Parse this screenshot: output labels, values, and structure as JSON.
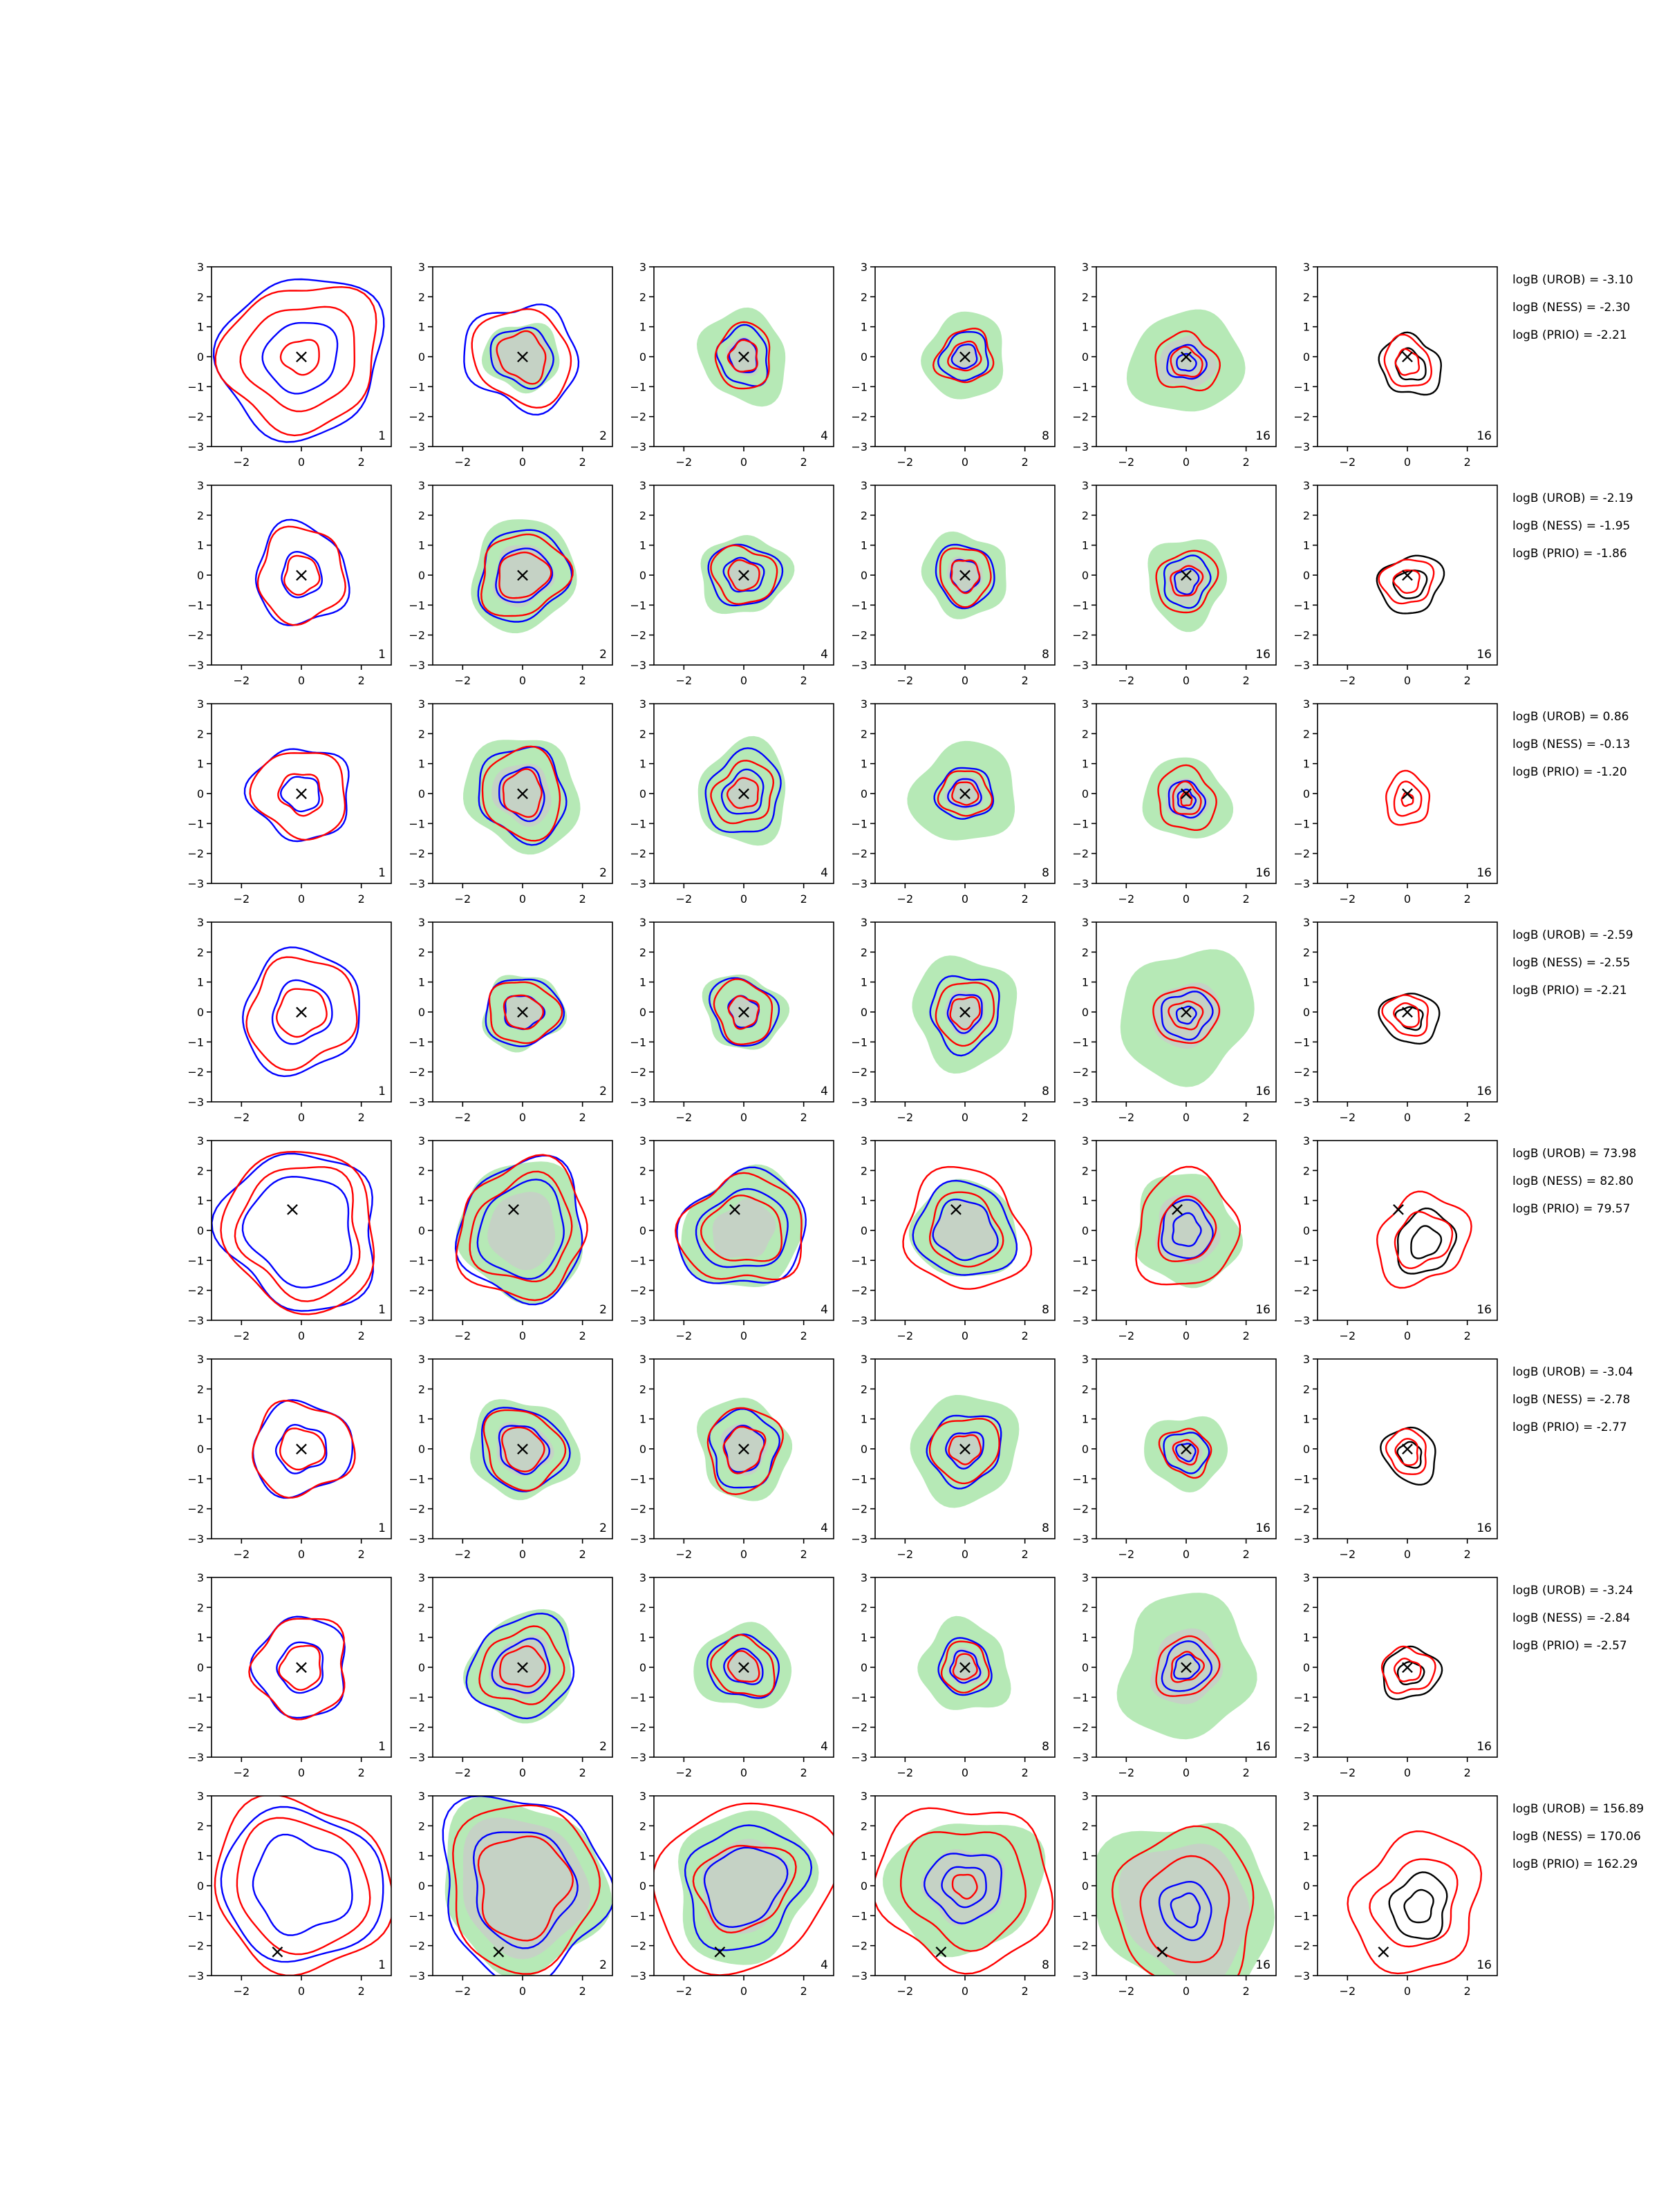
{
  "chart_data": {
    "type": "contour-grid",
    "rows": 8,
    "cols": 6,
    "xlim": [
      -3,
      3
    ],
    "ylim": [
      -3,
      3
    ],
    "xticks": [
      -2,
      0,
      2
    ],
    "yticks": [
      -3,
      -2,
      -1,
      0,
      1,
      2,
      3
    ],
    "xtick_labels": [
      "−2",
      "0",
      "2"
    ],
    "ytick_labels": [
      "−3",
      "−2",
      "−1",
      "0",
      "1",
      "2",
      "3"
    ],
    "column_labels": [
      "1",
      "2",
      "4",
      "8",
      "16",
      "16"
    ],
    "colors": {
      "red_contour": "#ff0000",
      "blue_contour": "#0000ff",
      "black_contour": "#000000",
      "green_fill": "#b6e9b6",
      "grey_fill": "#c9c9c9",
      "marker": "#000000"
    },
    "marker_symbol": "×",
    "rows_data": [
      {
        "marker": [
          0,
          0
        ],
        "annotations": [
          "logB (UROB) = -3.10",
          "logB (NESS) = -2.30",
          "logB (PRIO) = -2.21"
        ],
        "panels": [
          {
            "green": null,
            "grey": null,
            "red": [
              2.5,
              1.8,
              0.6
            ],
            "blue": [
              2.7,
              1.2
            ]
          },
          {
            "green": 1.2,
            "grey": 0.9,
            "red": [
              1.6,
              0.8
            ],
            "blue": [
              1.8,
              1.0
            ]
          },
          {
            "green": 1.5,
            "grey": 0.6,
            "red": [
              1.0,
              0.5
            ],
            "blue": [
              0.9,
              0.5
            ]
          },
          {
            "green": 1.4,
            "grey": 0.5,
            "red": [
              0.9,
              0.5
            ],
            "blue": [
              0.8,
              0.4
            ]
          },
          {
            "green": 1.8,
            "grey": 0.9,
            "red": [
              1.0,
              0.5
            ],
            "blue": [
              0.6,
              0.3
            ],
            "center": [
              0,
              -0.2
            ]
          },
          {
            "green": null,
            "grey": null,
            "red": [
              0.8,
              0.4
            ],
            "black": [
              1.0,
              0.5
            ],
            "center": [
              0,
              -0.2
            ]
          }
        ]
      },
      {
        "marker": [
          0,
          0
        ],
        "annotations": [
          "logB (UROB) = -2.19",
          "logB (NESS) = -1.95",
          "logB (PRIO) = -1.86"
        ],
        "panels": [
          {
            "green": null,
            "grey": null,
            "red": [
              1.5,
              0.6
            ],
            "blue": [
              1.6,
              0.7
            ]
          },
          {
            "green": 1.8,
            "grey": 1.0,
            "red": [
              1.4,
              0.8
            ],
            "blue": [
              1.5,
              0.9
            ]
          },
          {
            "green": 1.4,
            "grey": 0.5,
            "red": [
              1.0,
              0.5
            ],
            "blue": [
              1.1,
              0.6
            ]
          },
          {
            "green": 1.4,
            "grey": 0.6,
            "red": [
              0.9,
              0.5
            ],
            "blue": [
              1.0,
              0.5
            ]
          },
          {
            "green": 1.4,
            "grey": 0.7,
            "red": [
              1.0,
              0.5
            ],
            "blue": [
              0.8,
              0.4
            ],
            "center": [
              0,
              -0.2
            ]
          },
          {
            "green": null,
            "grey": null,
            "red": [
              0.8,
              0.4
            ],
            "black": [
              1.0,
              0.5
            ],
            "center": [
              0,
              -0.2
            ]
          }
        ]
      },
      {
        "marker": [
          0,
          0
        ],
        "annotations": [
          "logB (UROB) = 0.86",
          "logB (NESS) = -0.13",
          "logB (PRIO) = -1.20"
        ],
        "panels": [
          {
            "green": null,
            "grey": null,
            "red": [
              1.5,
              0.7
            ],
            "blue": [
              1.6,
              0.6
            ]
          },
          {
            "green": 1.9,
            "grey": 1.0,
            "red": [
              1.4,
              0.7
            ],
            "blue": [
              1.5,
              0.8
            ]
          },
          {
            "green": 1.6,
            "grey": 0.6,
            "red": [
              1.0,
              0.5
            ],
            "blue": [
              1.3,
              0.7
            ]
          },
          {
            "green": 1.7,
            "grey": 0.6,
            "red": [
              0.8,
              0.4
            ],
            "blue": [
              0.9,
              0.5
            ]
          },
          {
            "green": 1.4,
            "grey": 0.7,
            "red": [
              1.0,
              0.5,
              0.2
            ],
            "blue": [
              0.6,
              0.3
            ],
            "center": [
              0,
              -0.2
            ]
          },
          {
            "green": null,
            "grey": null,
            "red": [
              0.8,
              0.5,
              0.2
            ],
            "black": null,
            "center": [
              0,
              -0.2
            ]
          }
        ]
      },
      {
        "marker": [
          0,
          0
        ],
        "annotations": [
          "logB (UROB) = -2.59",
          "logB (NESS) = -2.55",
          "logB (PRIO) = -2.21"
        ],
        "panels": [
          {
            "green": null,
            "grey": null,
            "red": [
              1.8,
              0.8
            ],
            "blue": [
              2.0,
              1.0
            ]
          },
          {
            "green": 1.3,
            "grey": 0.6,
            "red": [
              1.1,
              0.6
            ],
            "blue": [
              1.2,
              0.6
            ]
          },
          {
            "green": 1.3,
            "grey": 0.5,
            "red": [
              1.0,
              0.5
            ],
            "blue": [
              1.1,
              0.5
            ]
          },
          {
            "green": 1.8,
            "grey": 0.7,
            "red": [
              1.0,
              0.5
            ],
            "blue": [
              1.2,
              0.6
            ]
          },
          {
            "green": 2.2,
            "grey": 1.1,
            "red": [
              1.0,
              0.5
            ],
            "blue": [
              0.8,
              0.3
            ],
            "center": [
              0,
              -0.1
            ]
          },
          {
            "green": null,
            "grey": null,
            "red": [
              0.7,
              0.4
            ],
            "black": [
              0.9,
              0.4
            ],
            "center": [
              0,
              -0.1
            ]
          }
        ]
      },
      {
        "marker": [
          -0.3,
          0.7
        ],
        "annotations": [
          "logB (UROB) = 73.98",
          "logB (NESS) = 82.80",
          "logB (PRIO) = 79.57"
        ],
        "panels": [
          {
            "green": null,
            "grey": null,
            "red": [
              2.6,
              2.1
            ],
            "blue": [
              2.6,
              1.8
            ]
          },
          {
            "green": 2.2,
            "grey": 1.2,
            "red": [
              2.2,
              1.7
            ],
            "blue": [
              2.2,
              1.5
            ]
          },
          {
            "green": 2.0,
            "grey": 1.0,
            "red": [
              1.9,
              1.2
            ],
            "blue": [
              2.0,
              1.4
            ]
          },
          {
            "green": 1.7,
            "grey": 1.0,
            "red": [
              2.0,
              1.2
            ],
            "blue": [
              1.6,
              1.0
            ]
          },
          {
            "green": 1.8,
            "grey": 1.1,
            "red": [
              1.8,
              1.0
            ],
            "blue": [
              0.9,
              0.5
            ],
            "center": [
              0,
              0
            ]
          },
          {
            "green": null,
            "grey": null,
            "red": [
              1.5,
              0.9
            ],
            "black": [
              1.0,
              0.5
            ],
            "center": [
              0.5,
              -0.3
            ]
          }
        ]
      },
      {
        "marker": [
          0,
          0
        ],
        "annotations": [
          "logB (UROB) = -3.04",
          "logB (NESS) = -2.78",
          "logB (PRIO) = -2.77"
        ],
        "panels": [
          {
            "green": null,
            "grey": null,
            "red": [
              1.6,
              0.7
            ],
            "blue": [
              1.6,
              0.8
            ]
          },
          {
            "green": 1.7,
            "grey": 0.9,
            "red": [
              1.3,
              0.7
            ],
            "blue": [
              1.4,
              0.8
            ]
          },
          {
            "green": 1.6,
            "grey": 0.8,
            "red": [
              1.3,
              0.7
            ],
            "blue": [
              1.2,
              0.7
            ]
          },
          {
            "green": 1.8,
            "grey": 0.6,
            "red": [
              1.1,
              0.5
            ],
            "blue": [
              1.2,
              0.6
            ]
          },
          {
            "green": 1.3,
            "grey": 0.5,
            "red": [
              0.8,
              0.4
            ],
            "blue": [
              0.7,
              0.3
            ],
            "center": [
              0,
              -0.1
            ]
          },
          {
            "green": null,
            "grey": null,
            "red": [
              0.7,
              0.4
            ],
            "black": [
              0.9,
              0.4
            ],
            "center": [
              0,
              -0.1
            ]
          }
        ]
      },
      {
        "marker": [
          0,
          0
        ],
        "annotations": [
          "logB (UROB) = -3.24",
          "logB (NESS) = -2.84",
          "logB (PRIO) = -2.57"
        ],
        "panels": [
          {
            "green": null,
            "grey": null,
            "red": [
              1.6,
              0.7
            ],
            "blue": [
              1.6,
              0.8
            ]
          },
          {
            "green": 1.8,
            "grey": 1.0,
            "red": [
              1.3,
              0.7
            ],
            "blue": [
              1.7,
              0.9
            ]
          },
          {
            "green": 1.5,
            "grey": 0.6,
            "red": [
              1.0,
              0.5
            ],
            "blue": [
              1.1,
              0.6
            ]
          },
          {
            "green": 1.5,
            "grey": 0.6,
            "red": [
              0.8,
              0.4
            ],
            "blue": [
              0.9,
              0.5
            ]
          },
          {
            "green": 2.3,
            "grey": 1.2,
            "red": [
              1.0,
              0.5
            ],
            "blue": [
              0.8,
              0.4
            ],
            "center": [
              0,
              0
            ]
          },
          {
            "green": null,
            "grey": null,
            "red": [
              0.8,
              0.4
            ],
            "black": [
              0.9,
              0.4
            ],
            "center": [
              0,
              -0.1
            ]
          }
        ]
      },
      {
        "marker": [
          -0.8,
          -2.2
        ],
        "annotations": [
          "logB (UROB) = 156.89",
          "logB (NESS) = 170.06",
          "logB (PRIO) = 162.29"
        ],
        "panels": [
          {
            "green": null,
            "grey": null,
            "red": [
              2.9,
              2.2
            ],
            "blue": [
              2.6,
              1.6
            ]
          },
          {
            "green": 2.8,
            "grey": 2.2,
            "red": [
              2.6,
              1.6
            ],
            "blue": [
              2.9,
              1.8
            ]
          },
          {
            "green": 2.4,
            "grey": 1.5,
            "red": [
              2.9,
              1.5
            ],
            "blue": [
              2.0,
              1.3
            ]
          },
          {
            "green": 2.4,
            "grey": 1.3,
            "red": [
              2.8,
              2.0,
              0.4
            ],
            "blue": [
              1.2,
              0.7
            ]
          },
          {
            "green": 3.0,
            "grey": 2.2,
            "red": [
              2.5,
              1.6
            ],
            "blue": [
              0.9,
              0.5
            ],
            "center": [
              0,
              -0.8
            ]
          },
          {
            "green": null,
            "grey": null,
            "red": [
              2.2,
              1.4
            ],
            "black": [
              1.0,
              0.5
            ],
            "center": [
              0.3,
              -0.6
            ]
          }
        ]
      }
    ]
  }
}
